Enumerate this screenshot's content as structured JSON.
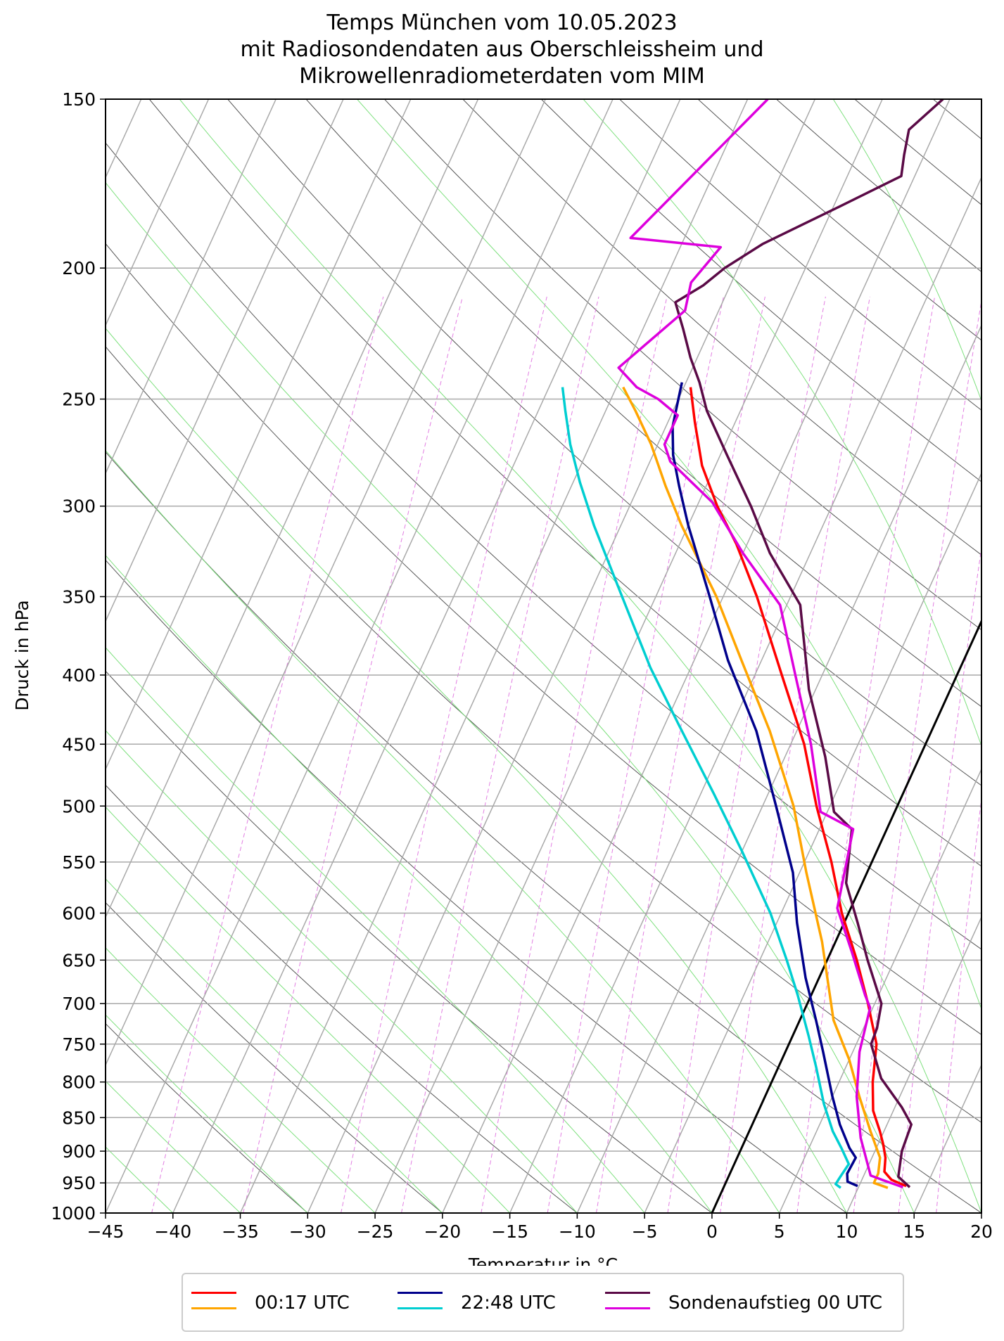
{
  "title": [
    "Temps München vom 10.05.2023",
    "mit Radiosondendaten aus Oberschleissheim und",
    "Mikrowellenradiometerdaten vom MIM"
  ],
  "chart_data": {
    "type": "line",
    "chart_kind": "skew-T log-p",
    "xlabel": "Temperatur in °C",
    "ylabel": "Druck in hPa",
    "xlim": [
      -45,
      20
    ],
    "ylim": [
      1000,
      150
    ],
    "y_scale": "log",
    "xticks": [
      -45,
      -40,
      -35,
      -30,
      -25,
      -20,
      -15,
      -10,
      -5,
      0,
      5,
      10,
      15,
      20
    ],
    "xtick_labels": [
      "−45",
      "−40",
      "−35",
      "−30",
      "−25",
      "−20",
      "−15",
      "−10",
      "−5",
      "0",
      "5",
      "10",
      "15",
      "20"
    ],
    "yticks": [
      1000,
      950,
      900,
      850,
      800,
      750,
      700,
      650,
      600,
      550,
      500,
      450,
      400,
      350,
      300,
      250,
      200,
      150
    ],
    "ytick_labels": [
      "1000",
      "950",
      "900",
      "850",
      "800",
      "750",
      "700",
      "650",
      "600",
      "550",
      "500",
      "450",
      "400",
      "350",
      "300",
      "250",
      "200",
      "150"
    ],
    "grid": true,
    "legend_position": "below",
    "legend": [
      {
        "label": "00:17 UTC",
        "colors": [
          "#ff0000",
          "#ffa500"
        ]
      },
      {
        "label": "22:48 UTC",
        "colors": [
          "#00008b",
          "#00ced1"
        ]
      },
      {
        "label": "Sondenaufstieg 00 UTC",
        "colors": [
          "#5a0a46",
          "#dd00dd"
        ]
      }
    ],
    "reference_line": {
      "name": "0 °C isotherm",
      "color": "#000000",
      "points": [
        [
          0,
          1000
        ],
        [
          20,
          365
        ]
      ]
    },
    "series": [
      {
        "name": "00:17 UTC",
        "variable": "temperature",
        "color": "#ff0000",
        "points": [
          [
            13.5,
            955
          ],
          [
            12.2,
            945
          ],
          [
            11.4,
            932
          ],
          [
            11.0,
            910
          ],
          [
            10.4,
            890
          ],
          [
            9.7,
            870
          ],
          [
            8.5,
            840
          ],
          [
            7.5,
            800
          ],
          [
            6.5,
            750
          ],
          [
            4.5,
            700
          ],
          [
            2.2,
            650
          ],
          [
            -0.5,
            600
          ],
          [
            -3.0,
            550
          ],
          [
            -6.0,
            500
          ],
          [
            -9.0,
            450
          ],
          [
            -13.0,
            400
          ],
          [
            -17.5,
            350
          ],
          [
            -20.8,
            320
          ],
          [
            -23.5,
            300
          ],
          [
            -26.0,
            280
          ],
          [
            -28.0,
            260
          ],
          [
            -29.5,
            245
          ]
        ]
      },
      {
        "name": "00:17 UTC",
        "variable": "dewpoint",
        "color": "#ffa500",
        "points": [
          [
            12.2,
            958
          ],
          [
            11.0,
            950
          ],
          [
            11.0,
            935
          ],
          [
            10.6,
            910
          ],
          [
            9.0,
            870
          ],
          [
            7.0,
            820
          ],
          [
            5.0,
            770
          ],
          [
            2.5,
            720
          ],
          [
            1.0,
            680
          ],
          [
            -1.0,
            630
          ],
          [
            -4.5,
            560
          ],
          [
            -7.7,
            500
          ],
          [
            -12.0,
            440
          ],
          [
            -16.5,
            390
          ],
          [
            -20.5,
            350
          ],
          [
            -25.5,
            310
          ],
          [
            -28.0,
            290
          ],
          [
            -30.5,
            270
          ],
          [
            -32.8,
            255
          ],
          [
            -34.5,
            245
          ]
        ]
      },
      {
        "name": "22:48 UTC",
        "variable": "temperature",
        "color": "#00008b",
        "points": [
          [
            9.9,
            955
          ],
          [
            9.0,
            948
          ],
          [
            8.7,
            935
          ],
          [
            8.8,
            910
          ],
          [
            8.0,
            895
          ],
          [
            6.5,
            860
          ],
          [
            5.0,
            820
          ],
          [
            2.8,
            760
          ],
          [
            1.2,
            720
          ],
          [
            -1.0,
            670
          ],
          [
            -3.5,
            610
          ],
          [
            -5.5,
            560
          ],
          [
            -9.0,
            500
          ],
          [
            -13.0,
            440
          ],
          [
            -17.5,
            390
          ],
          [
            -21.0,
            350
          ],
          [
            -25.0,
            310
          ],
          [
            -27.0,
            290
          ],
          [
            -28.5,
            275
          ],
          [
            -29.5,
            262
          ],
          [
            -30.0,
            250
          ],
          [
            -30.3,
            243
          ]
        ]
      },
      {
        "name": "22:48 UTC",
        "variable": "dewpoint",
        "color": "#00ced1",
        "points": [
          [
            8.7,
            958
          ],
          [
            8.2,
            952
          ],
          [
            8.3,
            940
          ],
          [
            8.5,
            920
          ],
          [
            7.4,
            895
          ],
          [
            6.2,
            870
          ],
          [
            4.6,
            830
          ],
          [
            2.8,
            780
          ],
          [
            1.2,
            740
          ],
          [
            -1.0,
            690
          ],
          [
            -3.0,
            650
          ],
          [
            -5.8,
            600
          ],
          [
            -10.0,
            540
          ],
          [
            -14.0,
            490
          ],
          [
            -19.0,
            435
          ],
          [
            -23.0,
            395
          ],
          [
            -27.5,
            350
          ],
          [
            -32.0,
            310
          ],
          [
            -34.5,
            288
          ],
          [
            -36.5,
            270
          ],
          [
            -38.0,
            255
          ],
          [
            -39.0,
            245
          ]
        ]
      },
      {
        "name": "Sondenaufstieg 00 UTC",
        "variable": "temperature",
        "color": "#5a0a46",
        "points": [
          [
            13.8,
            957
          ],
          [
            12.6,
            940
          ],
          [
            12.0,
            900
          ],
          [
            11.8,
            860
          ],
          [
            10.5,
            835
          ],
          [
            8.0,
            795
          ],
          [
            6.1,
            750
          ],
          [
            6.0,
            730
          ],
          [
            5.5,
            700
          ],
          [
            3.0,
            650
          ],
          [
            1.0,
            610
          ],
          [
            -1.2,
            570
          ],
          [
            -2.6,
            520
          ],
          [
            -4.5,
            505
          ],
          [
            -7.0,
            460
          ],
          [
            -10.5,
            410
          ],
          [
            -14.0,
            355
          ],
          [
            -18.0,
            325
          ],
          [
            -21.0,
            300
          ],
          [
            -24.5,
            275
          ],
          [
            -27.5,
            255
          ],
          [
            -29.0,
            243
          ],
          [
            -30.5,
            233
          ],
          [
            -32.0,
            222
          ],
          [
            -33.5,
            212
          ],
          [
            -32.0,
            206
          ],
          [
            -31.0,
            200
          ],
          [
            -29.0,
            192
          ],
          [
            -24.5,
            180
          ],
          [
            -21.0,
            171
          ],
          [
            -21.5,
            165
          ],
          [
            -22.0,
            158
          ],
          [
            -20.5,
            150
          ]
        ]
      },
      {
        "name": "Sondenaufstieg 00 UTC",
        "variable": "dewpoint",
        "color": "#dd00dd",
        "points": [
          [
            13.3,
            957
          ],
          [
            11.5,
            945
          ],
          [
            10.5,
            938
          ],
          [
            8.5,
            880
          ],
          [
            6.8,
            820
          ],
          [
            5.5,
            760
          ],
          [
            4.8,
            705
          ],
          [
            4.0,
            690
          ],
          [
            1.5,
            640
          ],
          [
            -1.0,
            595
          ],
          [
            -2.5,
            520
          ],
          [
            -5.5,
            505
          ],
          [
            -8.5,
            450
          ],
          [
            -12.0,
            400
          ],
          [
            -15.5,
            355
          ],
          [
            -20.0,
            325
          ],
          [
            -24.0,
            298
          ],
          [
            -28.5,
            278
          ],
          [
            -29.5,
            270
          ],
          [
            -29.5,
            257
          ],
          [
            -31.5,
            250
          ],
          [
            -33.5,
            245
          ],
          [
            -35.5,
            237
          ],
          [
            -32.5,
            215
          ],
          [
            -33.0,
            205
          ],
          [
            -32.0,
            193
          ],
          [
            -39.0,
            190
          ],
          [
            -33.5,
            150
          ]
        ]
      }
    ]
  }
}
